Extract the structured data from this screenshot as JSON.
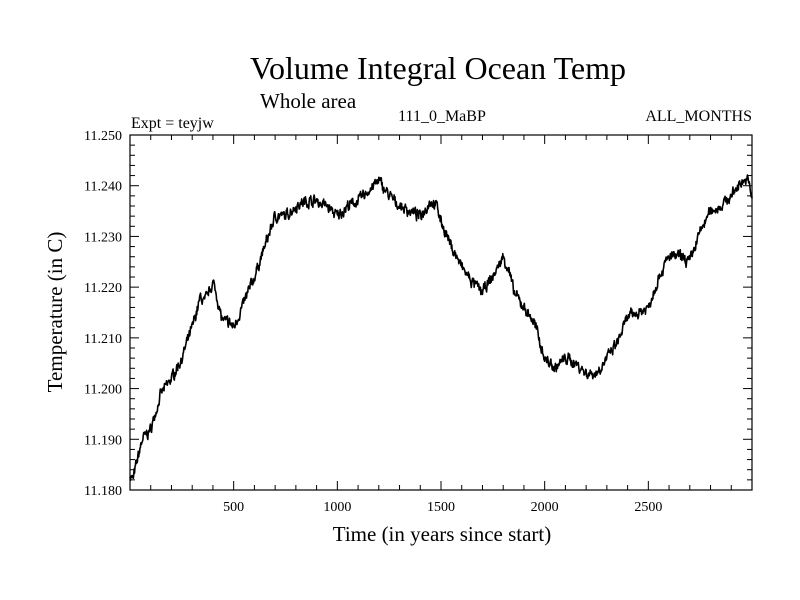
{
  "chart_data": {
    "type": "line",
    "title": "Volume Integral Ocean Temp",
    "subtitle": "Whole area",
    "left_label": "Expt = teyjw",
    "center_label": "111_0_MaBP",
    "right_label": "ALL_MONTHS",
    "xlabel": "Time (in years since start)",
    "ylabel": "Temperature (in C)",
    "xlim": [
      0,
      3000
    ],
    "ylim": [
      11.18,
      11.25
    ],
    "xticks": [
      500,
      1000,
      1500,
      2000,
      2500
    ],
    "xtick_labels": [
      "500",
      "1000",
      "1500",
      "2000",
      "2500"
    ],
    "yticks": [
      11.18,
      11.19,
      11.2,
      11.21,
      11.22,
      11.23,
      11.24,
      11.25
    ],
    "ytick_labels": [
      "11.180",
      "11.190",
      "11.200",
      "11.210",
      "11.220",
      "11.230",
      "11.240",
      "11.250"
    ],
    "grid": false,
    "series": [
      {
        "name": "Volume Integral Ocean Temp",
        "x": [
          0,
          15,
          30,
          60,
          100,
          150,
          200,
          250,
          300,
          340,
          360,
          380,
          400,
          420,
          440,
          460,
          480,
          500,
          520,
          560,
          600,
          650,
          700,
          750,
          800,
          850,
          900,
          950,
          1000,
          1050,
          1100,
          1150,
          1200,
          1250,
          1300,
          1350,
          1400,
          1450,
          1480,
          1500,
          1550,
          1600,
          1650,
          1700,
          1750,
          1800,
          1830,
          1850,
          1900,
          1950,
          2000,
          2050,
          2100,
          2150,
          2200,
          2250,
          2300,
          2350,
          2400,
          2450,
          2500,
          2550,
          2600,
          2650,
          2700,
          2750,
          2800,
          2850,
          2900,
          2950,
          2980,
          3000
        ],
        "y": [
          11.183,
          11.182,
          11.185,
          11.19,
          11.192,
          11.199,
          11.202,
          11.206,
          11.212,
          11.218,
          11.217,
          11.219,
          11.221,
          11.218,
          11.214,
          11.213,
          11.213,
          11.212,
          11.214,
          11.218,
          11.222,
          11.228,
          11.234,
          11.234,
          11.236,
          11.237,
          11.237,
          11.236,
          11.234,
          11.236,
          11.237,
          11.239,
          11.241,
          11.238,
          11.236,
          11.235,
          11.234,
          11.237,
          11.236,
          11.233,
          11.228,
          11.224,
          11.221,
          11.219,
          11.222,
          11.226,
          11.223,
          11.219,
          11.216,
          11.213,
          11.206,
          11.204,
          11.206,
          11.205,
          11.203,
          11.203,
          11.206,
          11.209,
          11.214,
          11.215,
          11.216,
          11.222,
          11.226,
          11.226,
          11.225,
          11.231,
          11.235,
          11.236,
          11.238,
          11.241,
          11.241,
          11.238
        ]
      }
    ]
  }
}
